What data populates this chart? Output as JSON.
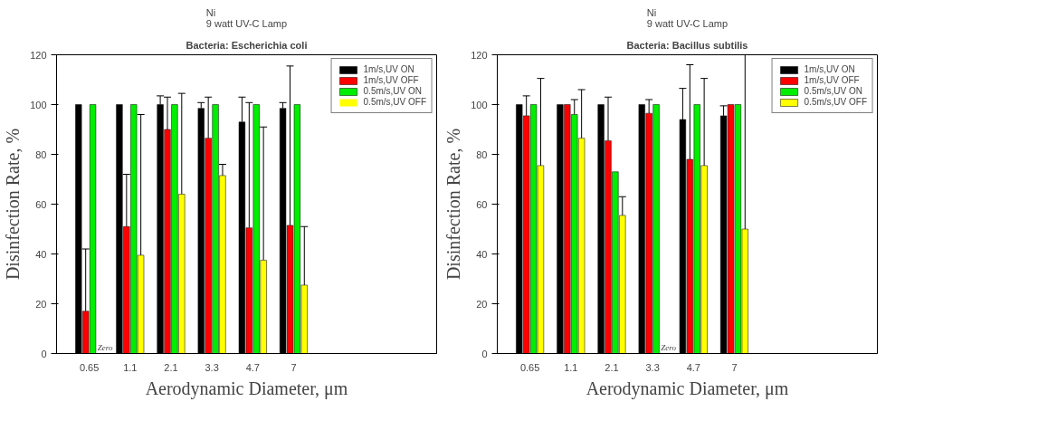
{
  "chart_data": [
    {
      "type": "bar",
      "title": "Ni\n9 watt UV-C Lamp",
      "subtitle": "Bacteria: Escherichia coli",
      "xlabel": "Aerodynamic Diameter, μm",
      "ylabel": "Disinfection Rate, %",
      "categories": [
        "0.65",
        "1.1",
        "2.1",
        "3.3",
        "4.7",
        "7"
      ],
      "ylim": [
        0,
        120
      ],
      "yticks": [
        0,
        20,
        40,
        60,
        80,
        100,
        120
      ],
      "grid": false,
      "legend": "top right",
      "series": [
        {
          "name": "1m/s,UV ON",
          "color": "#000000",
          "values": [
            100,
            100,
            100,
            98.5,
            93,
            98.5
          ],
          "errors": [
            null,
            null,
            [
              100,
              103.5
            ],
            [
              98.5,
              100.8
            ],
            [
              93,
              103
            ],
            [
              98.5,
              100.8
            ]
          ]
        },
        {
          "name": "1m/s,UV OFF",
          "color": "#ff0000",
          "values": [
            17,
            51,
            90,
            86.5,
            50.5,
            51.5
          ],
          "errors": [
            [
              17,
              42
            ],
            [
              51,
              72
            ],
            [
              90,
              103
            ],
            [
              86.5,
              103
            ],
            [
              50.5,
              100.8
            ],
            [
              51.5,
              115.5
            ]
          ]
        },
        {
          "name": "0.5m/s,UV ON",
          "color": "#00ee00",
          "values": [
            100,
            100,
            100,
            100,
            100,
            100
          ]
        },
        {
          "name": "0.5m/s,UV OFF",
          "color": "#ffff00",
          "values": [
            0,
            39.5,
            64,
            71.5,
            37.5,
            27.5
          ],
          "errors": [
            null,
            [
              39.5,
              96
            ],
            [
              64,
              104.5
            ],
            [
              71.5,
              76
            ],
            [
              37.5,
              91
            ],
            [
              27.5,
              51
            ]
          ]
        }
      ],
      "annotations": [
        {
          "text": "Zero",
          "x": "0.65",
          "y": 0
        }
      ]
    },
    {
      "type": "bar",
      "title": "Ni\n9 watt UV-C Lamp",
      "subtitle": "Bacteria: Bacillus subtilis",
      "xlabel": "Aerodynamic Diameter, μm",
      "ylabel": "Disinfection Rate, %",
      "categories": [
        "0.65",
        "1.1",
        "2.1",
        "3.3",
        "4.7",
        "7"
      ],
      "ylim": [
        0,
        120
      ],
      "yticks": [
        0,
        20,
        40,
        60,
        80,
        100,
        120
      ],
      "grid": false,
      "legend": "top right",
      "series": [
        {
          "name": "1m/s,UV ON",
          "color": "#000000",
          "values": [
            100,
            100,
            100,
            100,
            94,
            95.5
          ],
          "errors": [
            null,
            null,
            null,
            null,
            [
              94,
              106.5
            ],
            [
              95.5,
              99.5
            ]
          ]
        },
        {
          "name": "1m/s,UV OFF",
          "color": "#ff0000",
          "values": [
            95.5,
            100,
            85.5,
            96.5,
            78,
            100
          ],
          "errors": [
            [
              95.5,
              103.5
            ],
            null,
            [
              85.5,
              103
            ],
            [
              96.5,
              102
            ],
            [
              78,
              116
            ],
            null
          ]
        },
        {
          "name": "0.5m/s,UV ON",
          "color": "#00ee00",
          "values": [
            100,
            96,
            73,
            100,
            100,
            100
          ],
          "errors": [
            null,
            [
              96,
              102
            ],
            null,
            null,
            null,
            null
          ]
        },
        {
          "name": "0.5m/s,UV OFF",
          "color": "#ffff00",
          "values": [
            75.5,
            86.5,
            55.5,
            0,
            75.5,
            50
          ],
          "errors": [
            [
              75.5,
              110.5
            ],
            [
              86.5,
              106
            ],
            [
              55.5,
              63
            ],
            null,
            [
              75.5,
              110.5
            ],
            [
              50,
              120
            ]
          ]
        }
      ],
      "annotations": [
        {
          "text": "Zero",
          "x": "3.3",
          "y": 0
        }
      ]
    }
  ]
}
